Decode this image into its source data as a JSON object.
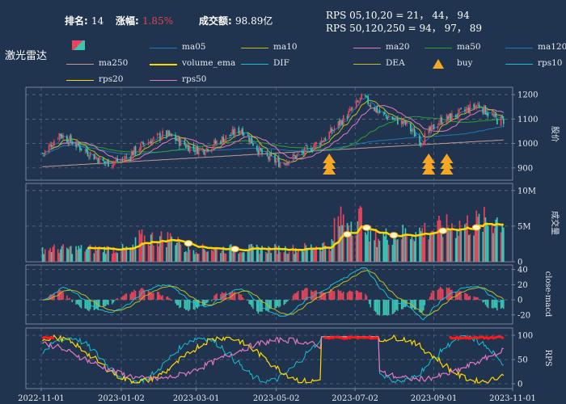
{
  "header": {
    "rank_label": "排名: ",
    "rank_value": "14",
    "change_label": "涨幅: ",
    "change_value": "1.85%",
    "turnover_label": "成交额: ",
    "turnover_value": "98.89亿",
    "rps_line1": "RPS 05,10,20 = 21， 44， 94",
    "rps_line2": "RPS 50,120,250 = 94， 97， 89"
  },
  "title": "激光雷达",
  "colors": {
    "background": "#21344f",
    "up": "#e8455a",
    "down": "#3fc5b4",
    "ma05": "#1f77b4",
    "ma10": "#bcbd22",
    "ma20": "#e377c2",
    "ma50": "#2ca02c",
    "ma120": "#1f77b4",
    "ma250": "#c49c94",
    "volume_ema": "#ffd700",
    "dif": "#17becf",
    "dea": "#bcbd22",
    "buy": "#f5a623",
    "rps10": "#17becf",
    "rps20": "#ffd700",
    "rps50": "#e377c2",
    "rps_high": "#ff1a1a"
  },
  "legend": [
    {
      "key": "ma05",
      "label": "ma05"
    },
    {
      "key": "ma10",
      "label": "ma10"
    },
    {
      "key": "ma20",
      "label": "ma20"
    },
    {
      "key": "ma50",
      "label": "ma50"
    },
    {
      "key": "ma120",
      "label": "ma120"
    },
    {
      "key": "ma250",
      "label": "ma250"
    },
    {
      "key": "volume_ema",
      "label": "volume_ema"
    },
    {
      "key": "dif",
      "label": "DIF"
    },
    {
      "key": "dea",
      "label": "DEA"
    },
    {
      "key": "buy",
      "label": "buy"
    },
    {
      "key": "rps10",
      "label": "rps10"
    },
    {
      "key": "rps20",
      "label": "rps20"
    },
    {
      "key": "rps50",
      "label": "rps50"
    }
  ],
  "chart_data": {
    "type": "candlestick",
    "x_ticks": [
      "2022-11-01",
      "2023-01-02",
      "2023-03-01",
      "2023-05-02",
      "2023-07-02",
      "2023-09-01",
      "2023-11-01"
    ],
    "panels": [
      {
        "name": "price",
        "ylabel": "股价",
        "yticks": [
          900,
          1000,
          1100,
          1200
        ],
        "ylim": [
          850,
          1230
        ]
      },
      {
        "name": "volume",
        "ylabel": "成交量",
        "ytick_labels": [
          "0",
          "5M",
          "10M"
        ],
        "ylim": [
          0,
          11
        ]
      },
      {
        "name": "macd",
        "ylabel": "close-macd",
        "yticks": [
          -20,
          0,
          20,
          40
        ],
        "ylim": [
          -32,
          46
        ]
      },
      {
        "name": "rps",
        "ylabel": "RPS",
        "yticks": [
          0,
          50,
          100
        ],
        "ylim": [
          -10,
          115
        ]
      }
    ],
    "price_anchors": [
      {
        "date": "2022-11-03",
        "close": 960
      },
      {
        "date": "2022-11-15",
        "close": 1040
      },
      {
        "date": "2022-12-01",
        "close": 985
      },
      {
        "date": "2022-12-20",
        "close": 920
      },
      {
        "date": "2023-01-02",
        "close": 930
      },
      {
        "date": "2023-01-20",
        "close": 1000
      },
      {
        "date": "2023-02-05",
        "close": 1040
      },
      {
        "date": "2023-02-22",
        "close": 990
      },
      {
        "date": "2023-03-05",
        "close": 970
      },
      {
        "date": "2023-03-22",
        "close": 1020
      },
      {
        "date": "2023-04-05",
        "close": 1060
      },
      {
        "date": "2023-04-22",
        "close": 950
      },
      {
        "date": "2023-05-05",
        "close": 920
      },
      {
        "date": "2023-05-22",
        "close": 960
      },
      {
        "date": "2023-06-08",
        "close": 1020
      },
      {
        "date": "2023-06-25",
        "close": 1110
      },
      {
        "date": "2023-07-08",
        "close": 1190
      },
      {
        "date": "2023-07-22",
        "close": 1120
      },
      {
        "date": "2023-08-10",
        "close": 1080
      },
      {
        "date": "2023-08-22",
        "close": 1010
      },
      {
        "date": "2023-09-05",
        "close": 1090
      },
      {
        "date": "2023-09-20",
        "close": 1120
      },
      {
        "date": "2023-10-05",
        "close": 1160
      },
      {
        "date": "2023-10-20",
        "close": 1095
      }
    ],
    "buy_signals": [
      "2023-06-12",
      "2023-08-28",
      "2023-09-11"
    ],
    "volume_ema_range": [
      1.5,
      6.0
    ]
  }
}
